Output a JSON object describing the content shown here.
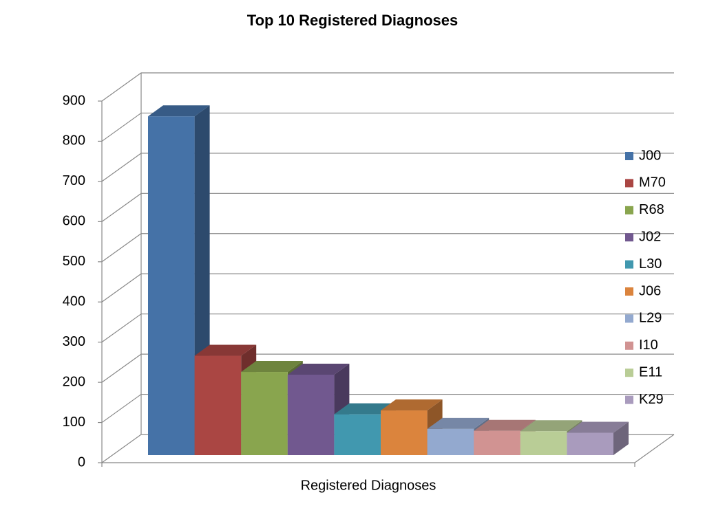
{
  "chart_data": {
    "type": "bar3d",
    "title": "Top 10 Registered Diagnoses",
    "categories": [
      "Registered Diagnoses"
    ],
    "series": [
      {
        "name": "J00",
        "color": "#4572a7",
        "values": [
          880
        ]
      },
      {
        "name": "M70",
        "color": "#aa4643",
        "values": [
          258
        ]
      },
      {
        "name": "R68",
        "color": "#89a54e",
        "values": [
          216
        ]
      },
      {
        "name": "J02",
        "color": "#71588f",
        "values": [
          209
        ]
      },
      {
        "name": "L30",
        "color": "#4198af",
        "values": [
          106
        ]
      },
      {
        "name": "J06",
        "color": "#db843d",
        "values": [
          116
        ]
      },
      {
        "name": "L29",
        "color": "#93a9cf",
        "values": [
          68
        ]
      },
      {
        "name": "I10",
        "color": "#d19392",
        "values": [
          63
        ]
      },
      {
        "name": "E11",
        "color": "#b9cd96",
        "values": [
          62
        ]
      },
      {
        "name": "K29",
        "color": "#a99bbd",
        "values": [
          58
        ]
      }
    ],
    "ylim": [
      0,
      900
    ],
    "yticks": [
      0,
      100,
      200,
      300,
      400,
      500,
      600,
      700,
      800,
      900
    ],
    "grid": true,
    "legend": "right"
  }
}
